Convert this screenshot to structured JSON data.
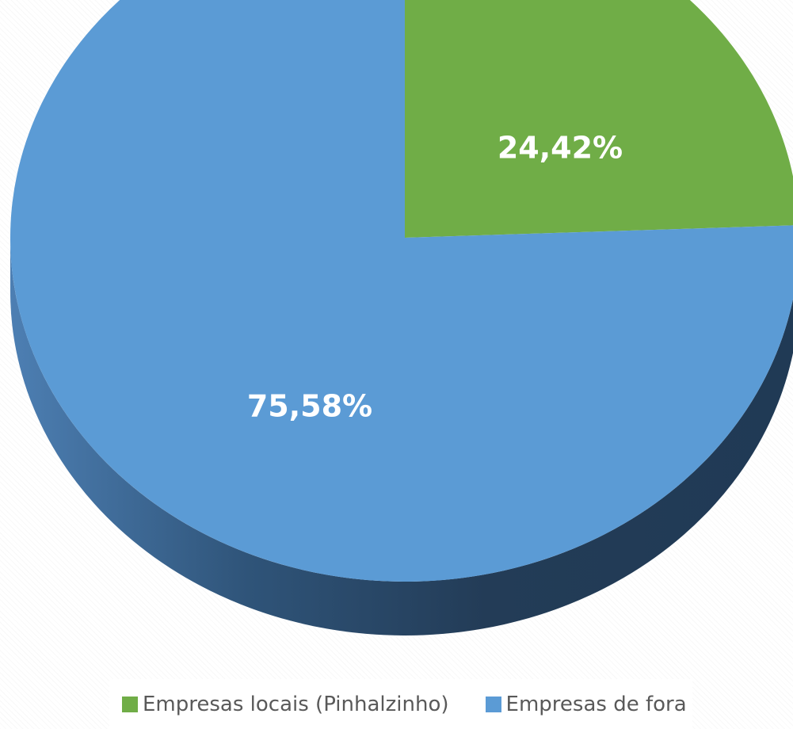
{
  "chart_data": {
    "type": "pie",
    "style": "3d",
    "title": "",
    "slices": [
      {
        "label": "Empresas locais (Pinhalzinho)",
        "value": 24.42,
        "display": "24,42%",
        "color": "#70AD47"
      },
      {
        "label": "Empresas de fora",
        "value": 75.58,
        "display": "75,58%",
        "color": "#5B9BD5"
      }
    ],
    "legend_position": "bottom"
  }
}
